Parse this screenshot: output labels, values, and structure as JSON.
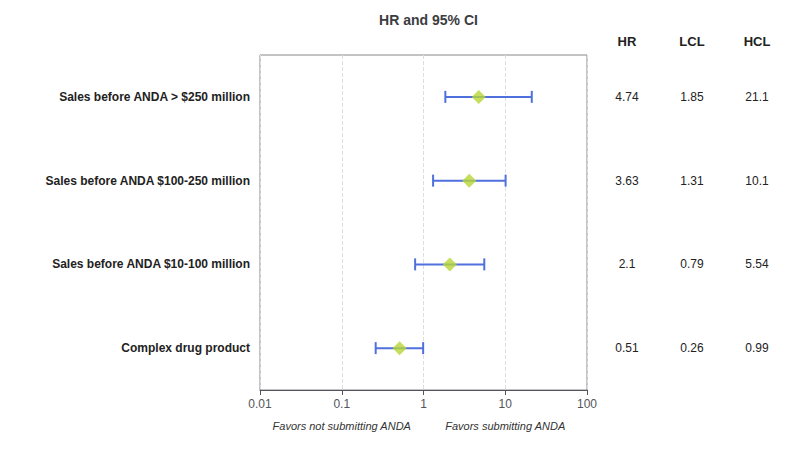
{
  "chart_data": {
    "type": "forest",
    "title": "HR and 95% CI",
    "categories": [
      "Sales before ANDA > $250 million",
      "Sales before ANDA $100-250 million",
      "Sales before ANDA $10-100 million",
      "Complex drug product"
    ],
    "values": [
      4.74,
      3.63,
      2.1,
      0.51
    ],
    "lcl": [
      1.85,
      1.31,
      0.79,
      0.26
    ],
    "hcl": [
      21.1,
      10.1,
      5.54,
      0.99
    ],
    "columns": [
      "HR",
      "LCL",
      "HCL"
    ],
    "annotations": [
      "Favors not submitting ANDA",
      "Favors submitting ANDA"
    ],
    "xlim": [
      0.01,
      100
    ],
    "xticks": [
      0.01,
      0.1,
      1,
      10,
      100
    ],
    "log": "x",
    "grid": true,
    "marker": "diamond"
  }
}
